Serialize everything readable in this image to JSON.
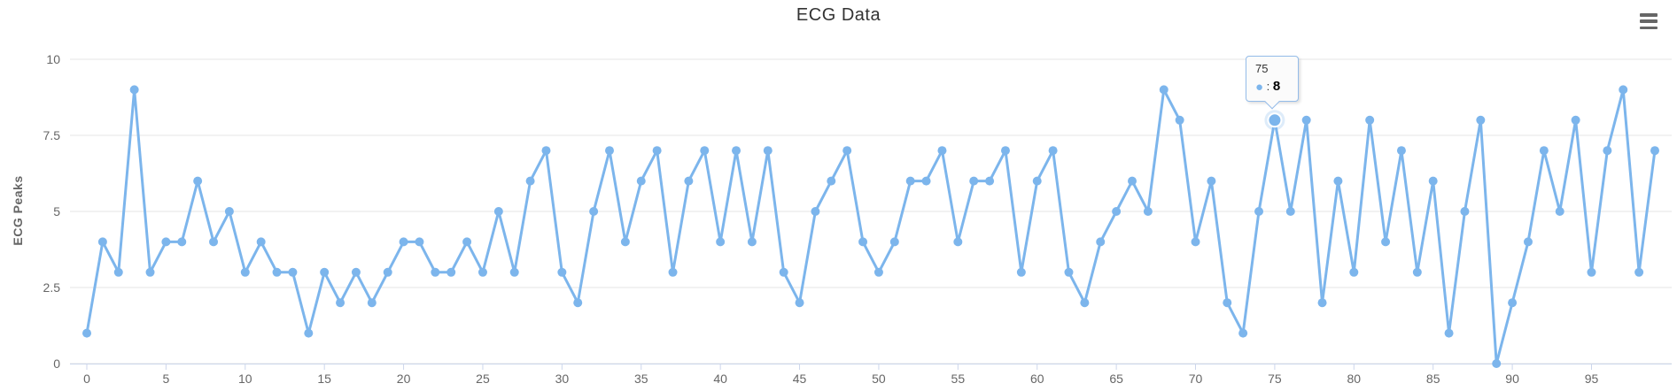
{
  "header": {
    "title": "ECG Data"
  },
  "icons": {
    "menu": "hamburger-menu",
    "series_marker": "filled-circle"
  },
  "tooltip": {
    "x_label": "75",
    "separator": " : ",
    "value": "8"
  },
  "colors": {
    "series": "#7cb5ec",
    "halo": "rgba(124,181,236,0.25)",
    "grid": "#e6e6e6",
    "axis_line": "#ccd6eb",
    "label": "#666666",
    "title_text": "#333333",
    "tooltip_bg": "#fbfbfb",
    "tooltip_border": "#94bce9",
    "tooltip_value": "#000000",
    "menu_icon": "#666666"
  },
  "chart_data": {
    "type": "line",
    "title": "ECG Data",
    "xlabel": "",
    "ylabel": "ECG Peaks",
    "x": [
      0,
      1,
      2,
      3,
      4,
      5,
      6,
      7,
      8,
      9,
      10,
      11,
      12,
      13,
      14,
      15,
      16,
      17,
      18,
      19,
      20,
      21,
      22,
      23,
      24,
      25,
      26,
      27,
      28,
      29,
      30,
      31,
      32,
      33,
      34,
      35,
      36,
      37,
      38,
      39,
      40,
      41,
      42,
      43,
      44,
      45,
      46,
      47,
      48,
      49,
      50,
      51,
      52,
      53,
      54,
      55,
      56,
      57,
      58,
      59,
      60,
      61,
      62,
      63,
      64,
      65,
      66,
      67,
      68,
      69,
      70,
      71,
      72,
      73,
      74,
      75,
      76,
      77,
      78,
      79,
      80,
      81,
      82,
      83,
      84,
      85,
      86,
      87,
      88,
      89,
      90,
      91,
      92,
      93,
      94,
      95,
      96,
      97,
      98,
      99
    ],
    "values": [
      1,
      4,
      3,
      9,
      3,
      4,
      4,
      6,
      4,
      5,
      3,
      4,
      3,
      3,
      1,
      3,
      2,
      3,
      2,
      3,
      4,
      4,
      3,
      3,
      4,
      3,
      5,
      3,
      6,
      7,
      3,
      2,
      5,
      7,
      4,
      6,
      7,
      3,
      6,
      7,
      4,
      7,
      4,
      7,
      3,
      2,
      5,
      6,
      7,
      4,
      3,
      4,
      6,
      6,
      7,
      4,
      6,
      6,
      7,
      3,
      6,
      7,
      3,
      2,
      4,
      5,
      6,
      5,
      9,
      8,
      4,
      6,
      2,
      1,
      5,
      8,
      5,
      8,
      2,
      6,
      3,
      8,
      4,
      7,
      3,
      6,
      1,
      5,
      8,
      0,
      2,
      4,
      7,
      5,
      8,
      3,
      7,
      9,
      3,
      7
    ],
    "ylim": [
      0,
      10
    ],
    "y_ticks": [
      0,
      2.5,
      5,
      7.5,
      10
    ],
    "x_ticks": [
      0,
      5,
      10,
      15,
      20,
      25,
      30,
      35,
      40,
      45,
      50,
      55,
      60,
      65,
      70,
      75,
      80,
      85,
      90,
      95
    ],
    "grid": "horizontal",
    "legend": "none",
    "marker": "circle",
    "hovered_index": 75,
    "hovered_value": 8
  }
}
